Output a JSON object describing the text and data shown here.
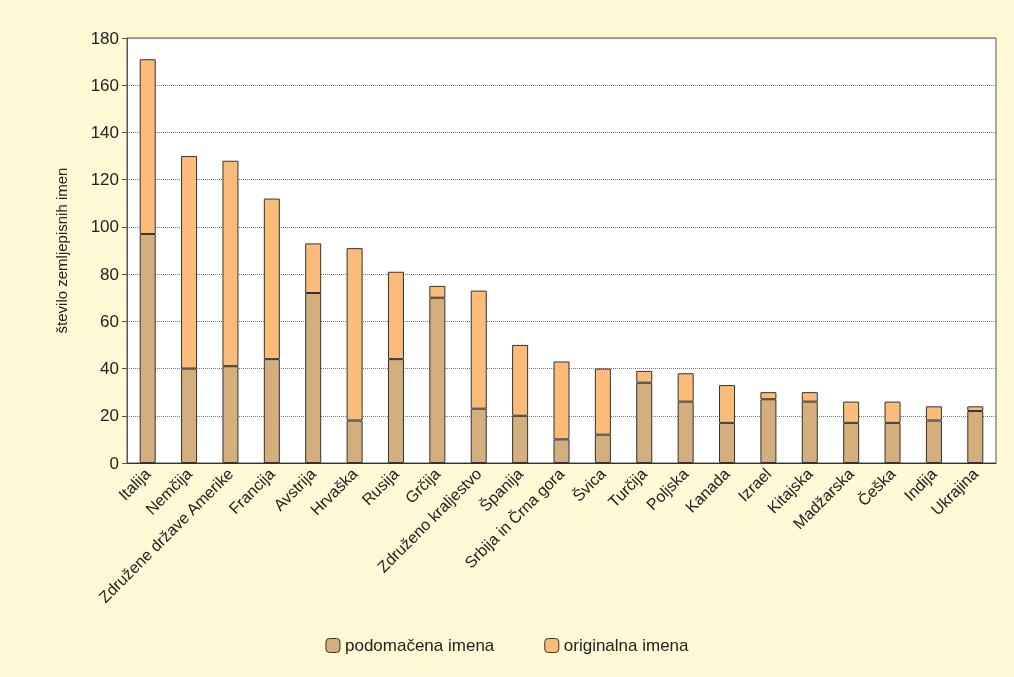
{
  "chart_data": {
    "type": "bar",
    "stacked": true,
    "ylabel": "število zemljepisnih imen",
    "categories": [
      "Italija",
      "Nemčija",
      "Združene države Amerike",
      "Francija",
      "Avstrija",
      "Hrvaška",
      "Rusija",
      "Grčija",
      "Združeno kraljestvo",
      "Španija",
      "Srbija in Črna gora",
      "Švica",
      "Turčija",
      "Poljska",
      "Kanada",
      "Izrael",
      "Kitajska",
      "Madžarska",
      "Češka",
      "Indija",
      "Ukrajina"
    ],
    "series": [
      {
        "name": "podomačena imena",
        "color": "#d4ae7c",
        "values": [
          97,
          40,
          41,
          44,
          72,
          18,
          44,
          70,
          23,
          20,
          10,
          12,
          34,
          26,
          17,
          27,
          26,
          17,
          17,
          18,
          22
        ]
      },
      {
        "name": "originalna imena",
        "color": "#fbbc79",
        "values": [
          74,
          90,
          87,
          68,
          21,
          73,
          37,
          5,
          50,
          30,
          33,
          28,
          5,
          12,
          16,
          3,
          4,
          9,
          9,
          6,
          2
        ]
      }
    ],
    "ylim": [
      0,
      180
    ],
    "yticks": [
      0,
      20,
      40,
      60,
      80,
      100,
      120,
      140,
      160,
      180
    ],
    "grid": "y",
    "legend": "bottom"
  }
}
